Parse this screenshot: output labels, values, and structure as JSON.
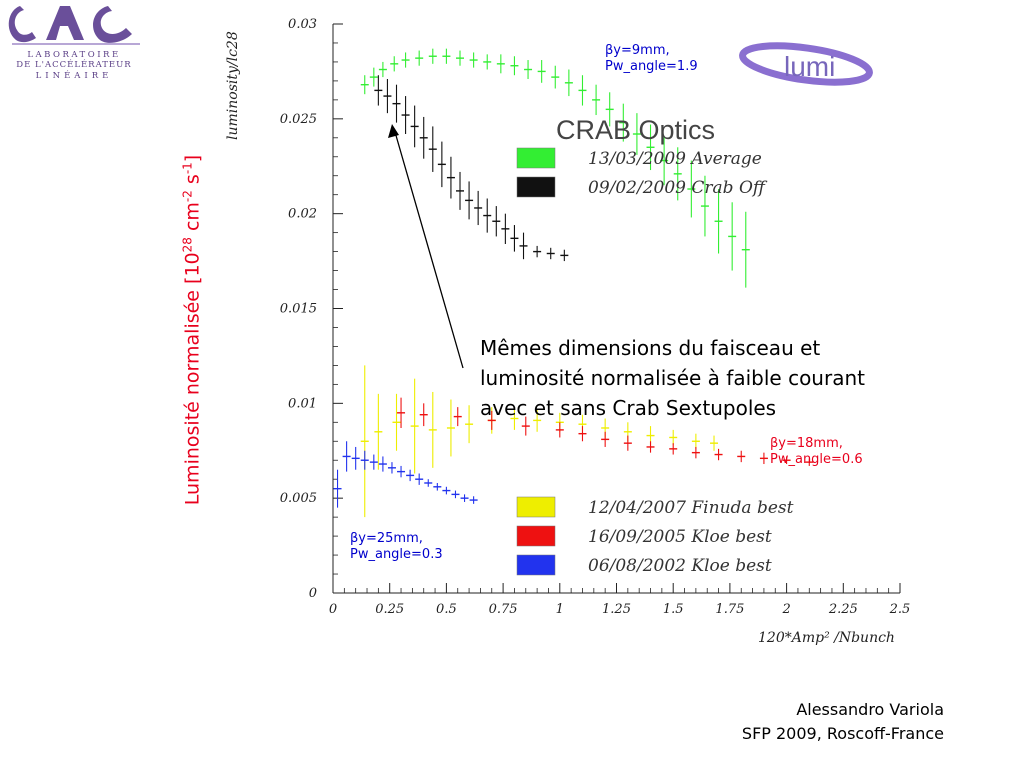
{
  "logo": {
    "letters": "LAL",
    "line1": "LABORATOIRE",
    "line2": "DE L'ACCÉLÉRATEUR",
    "line3": "LINÉAIRE"
  },
  "slide": {
    "y_axis_label_main": "Luminosité normalisée [10",
    "y_axis_label_exp1": "28",
    "y_axis_label_mid": " cm",
    "y_axis_label_exp2": "-2",
    "y_axis_label_tail": " s",
    "y_axis_label_exp3": "-1",
    "y_axis_label_end": "]",
    "callout": "Mêmes dimensions du faisceau et luminosité normalisée à faible courant avec et sans Crab Sextupoles",
    "note_9_beta": "β",
    "note_9_line1": "y=9mm,",
    "note_9_line2": "Pw_angle=1.9",
    "note_18_beta": "β",
    "note_18_line1": "y=18mm,",
    "note_18_line2": "Pw_angle=0.6",
    "note_25_beta": "β",
    "note_25_line1": "y=25mm,",
    "note_25_line2": "Pw_angle=0.3",
    "author": "Alessandro Variola",
    "event": "SFP 2009, Roscoff-France",
    "lumi_logo_text": "lumi"
  },
  "chart_data": {
    "type": "scatter",
    "ylabel": "luminosity/lc28",
    "xlabel": "120*Amp² /Nbunch",
    "xlim": [
      0,
      2.5
    ],
    "ylim": [
      0,
      0.03
    ],
    "x_ticks": [
      "0",
      "0.25",
      "0.5",
      "0.75",
      "1",
      "1.25",
      "1.5",
      "1.75",
      "2",
      "2.25",
      "2.5"
    ],
    "y_ticks": [
      "0",
      "0.005",
      "0.01",
      "0.015",
      "0.02",
      "0.025",
      "0.03"
    ],
    "legend_top_title": "CRAB Optics",
    "series": [
      {
        "name": "13/03/2009 Average",
        "color": "#33ee33",
        "points": [
          [
            0.14,
            0.0268
          ],
          [
            0.18,
            0.0272
          ],
          [
            0.22,
            0.0276
          ],
          [
            0.27,
            0.0279
          ],
          [
            0.32,
            0.0281
          ],
          [
            0.38,
            0.0282
          ],
          [
            0.44,
            0.0283
          ],
          [
            0.5,
            0.0283
          ],
          [
            0.56,
            0.0282
          ],
          [
            0.62,
            0.0281
          ],
          [
            0.68,
            0.028
          ],
          [
            0.74,
            0.0279
          ],
          [
            0.8,
            0.0278
          ],
          [
            0.86,
            0.0276
          ],
          [
            0.92,
            0.0275
          ],
          [
            0.98,
            0.0272
          ],
          [
            1.04,
            0.0269
          ],
          [
            1.1,
            0.0265
          ],
          [
            1.16,
            0.026
          ],
          [
            1.22,
            0.0255
          ],
          [
            1.28,
            0.0248
          ],
          [
            1.34,
            0.0242
          ],
          [
            1.4,
            0.0235
          ],
          [
            1.46,
            0.0228
          ],
          [
            1.52,
            0.0221
          ],
          [
            1.58,
            0.0213
          ],
          [
            1.64,
            0.0204
          ],
          [
            1.7,
            0.0196
          ],
          [
            1.76,
            0.0188
          ],
          [
            1.82,
            0.0181
          ]
        ],
        "errors": [
          0.0005,
          0.0005,
          0.0004,
          0.0004,
          0.0004,
          0.0004,
          0.0004,
          0.0004,
          0.0004,
          0.0004,
          0.0004,
          0.0005,
          0.0005,
          0.0005,
          0.0006,
          0.0006,
          0.0007,
          0.0008,
          0.0008,
          0.0009,
          0.001,
          0.0011,
          0.0012,
          0.0013,
          0.0014,
          0.0015,
          0.0016,
          0.0017,
          0.0018,
          0.002
        ]
      },
      {
        "name": "09/02/2009 Crab Off",
        "color": "#111111",
        "points": [
          [
            0.2,
            0.0265
          ],
          [
            0.24,
            0.0262
          ],
          [
            0.28,
            0.0258
          ],
          [
            0.32,
            0.0252
          ],
          [
            0.36,
            0.0246
          ],
          [
            0.4,
            0.024
          ],
          [
            0.44,
            0.0234
          ],
          [
            0.48,
            0.0226
          ],
          [
            0.52,
            0.0219
          ],
          [
            0.56,
            0.0212
          ],
          [
            0.6,
            0.0207
          ],
          [
            0.64,
            0.0203
          ],
          [
            0.68,
            0.0199
          ],
          [
            0.72,
            0.0196
          ],
          [
            0.76,
            0.0192
          ],
          [
            0.8,
            0.0187
          ],
          [
            0.84,
            0.0183
          ],
          [
            0.9,
            0.018
          ],
          [
            0.96,
            0.0179
          ],
          [
            1.02,
            0.0178
          ]
        ],
        "errors": [
          0.0008,
          0.0009,
          0.001,
          0.001,
          0.0011,
          0.0011,
          0.0012,
          0.0012,
          0.0011,
          0.001,
          0.001,
          0.0009,
          0.0009,
          0.0008,
          0.0008,
          0.0007,
          0.0007,
          0.0003,
          0.0003,
          0.0003
        ]
      },
      {
        "name": "12/04/2007 Finuda best",
        "color": "#eeee00",
        "points": [
          [
            0.14,
            0.008
          ],
          [
            0.2,
            0.0085
          ],
          [
            0.28,
            0.009
          ],
          [
            0.36,
            0.0088
          ],
          [
            0.44,
            0.0086
          ],
          [
            0.52,
            0.0087
          ],
          [
            0.6,
            0.0089
          ],
          [
            0.7,
            0.0091
          ],
          [
            0.8,
            0.0092
          ],
          [
            0.9,
            0.0091
          ],
          [
            1.0,
            0.009
          ],
          [
            1.1,
            0.0089
          ],
          [
            1.2,
            0.0087
          ],
          [
            1.3,
            0.0085
          ],
          [
            1.4,
            0.0083
          ],
          [
            1.5,
            0.0082
          ],
          [
            1.6,
            0.008
          ],
          [
            1.68,
            0.0079
          ]
        ],
        "errors": [
          0.004,
          0.002,
          0.0015,
          0.0025,
          0.002,
          0.0015,
          0.001,
          0.0007,
          0.0006,
          0.0006,
          0.0005,
          0.0005,
          0.0005,
          0.0005,
          0.0005,
          0.0004,
          0.0004,
          0.0004
        ]
      },
      {
        "name": "16/09/2005 Kloe best",
        "color": "#ee1111",
        "points": [
          [
            0.3,
            0.0095
          ],
          [
            0.4,
            0.0094
          ],
          [
            0.55,
            0.0093
          ],
          [
            0.7,
            0.0091
          ],
          [
            0.85,
            0.0088
          ],
          [
            1.0,
            0.0086
          ],
          [
            1.1,
            0.0084
          ],
          [
            1.2,
            0.0081
          ],
          [
            1.3,
            0.0079
          ],
          [
            1.4,
            0.0077
          ],
          [
            1.5,
            0.0076
          ],
          [
            1.6,
            0.0074
          ],
          [
            1.7,
            0.0073
          ],
          [
            1.8,
            0.0072
          ],
          [
            1.9,
            0.0071
          ],
          [
            2.0,
            0.007
          ],
          [
            2.1,
            0.0069
          ]
        ],
        "errors": [
          0.0008,
          0.0006,
          0.0005,
          0.0005,
          0.0005,
          0.0004,
          0.0004,
          0.0004,
          0.0004,
          0.0003,
          0.0003,
          0.0003,
          0.0003,
          0.0003,
          0.0003,
          0.0002,
          0.0002
        ]
      },
      {
        "name": "06/08/2002 Kloe best",
        "color": "#2233ee",
        "points": [
          [
            0.02,
            0.0055
          ],
          [
            0.06,
            0.0072
          ],
          [
            0.1,
            0.0071
          ],
          [
            0.14,
            0.007
          ],
          [
            0.18,
            0.0069
          ],
          [
            0.22,
            0.0068
          ],
          [
            0.26,
            0.0066
          ],
          [
            0.3,
            0.0064
          ],
          [
            0.34,
            0.0062
          ],
          [
            0.38,
            0.006
          ],
          [
            0.42,
            0.0058
          ],
          [
            0.46,
            0.0056
          ],
          [
            0.5,
            0.0054
          ],
          [
            0.54,
            0.0052
          ],
          [
            0.58,
            0.005
          ],
          [
            0.62,
            0.0049
          ]
        ],
        "errors": [
          0.001,
          0.0008,
          0.0006,
          0.0005,
          0.0004,
          0.0004,
          0.0003,
          0.0003,
          0.0003,
          0.0003,
          0.0002,
          0.0002,
          0.0002,
          0.0002,
          0.0002,
          0.0002
        ]
      }
    ]
  }
}
